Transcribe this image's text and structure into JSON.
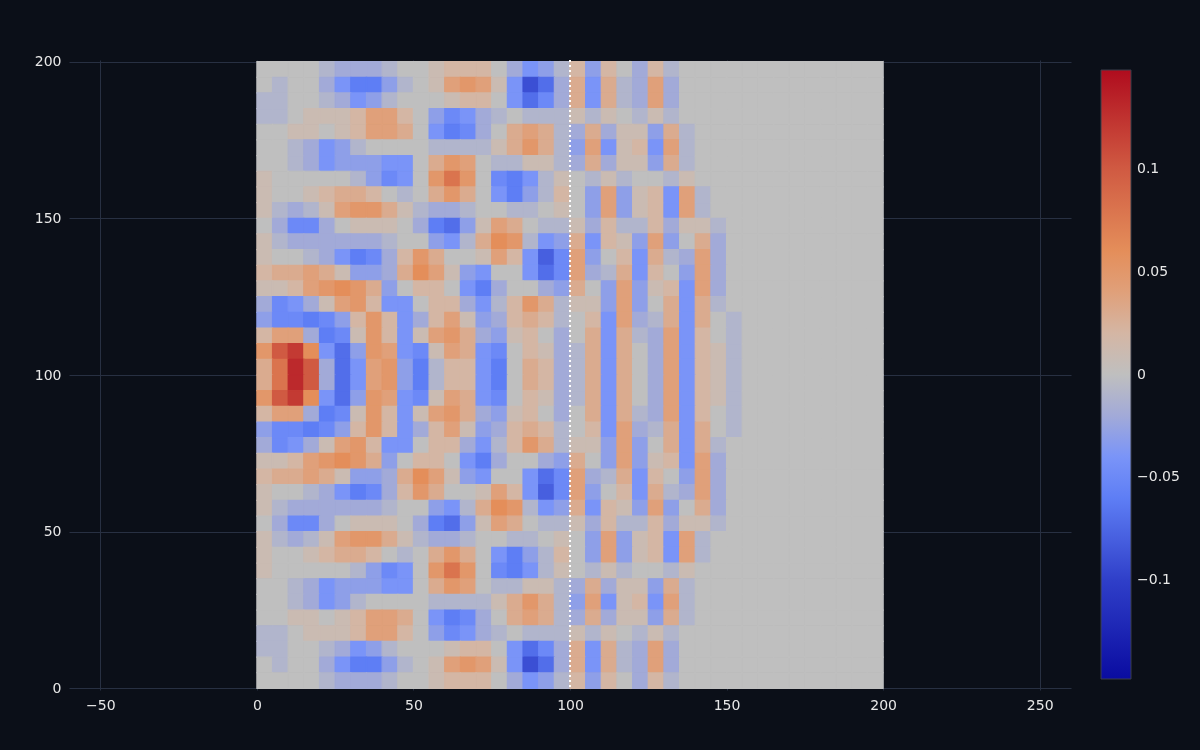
{
  "chart_data": {
    "type": "heatmap",
    "x": [
      2.5,
      7.5,
      12.5,
      17.5,
      22.5,
      27.5,
      32.5,
      37.5,
      42.5,
      47.5,
      52.5,
      57.5,
      62.5,
      67.5,
      72.5,
      77.5,
      82.5,
      87.5,
      92.5,
      97.5,
      102.5,
      107.5,
      112.5,
      117.5,
      122.5,
      127.5,
      132.5,
      137.5,
      142.5,
      147.5,
      152.5,
      157.5,
      162.5,
      167.5,
      172.5,
      177.5,
      182.5,
      187.5,
      192.5,
      197.5
    ],
    "y": [
      197.5,
      192.5,
      187.5,
      182.5,
      177.5,
      172.5,
      167.5,
      162.5,
      157.5,
      152.5,
      147.5,
      142.5,
      137.5,
      132.5,
      127.5,
      122.5,
      117.5,
      112.5,
      107.5,
      102.5,
      97.5,
      92.5,
      87.5,
      82.5,
      77.5,
      72.5,
      67.5,
      62.5,
      57.5,
      52.5,
      47.5,
      42.5,
      37.5,
      32.5,
      27.5,
      22.5,
      17.5,
      12.5,
      7.5,
      2.5
    ],
    "cells": [
      [
        0,
        0,
        0,
        0,
        -0.01,
        -0.02,
        -0.02,
        -0.02,
        -0.01,
        0,
        0,
        0.01,
        0.02,
        0.02,
        0.02,
        0,
        -0.02,
        -0.04,
        -0.03,
        -0.01,
        0.02,
        -0.03,
        0.02,
        0,
        -0.02,
        0.02,
        -0.01,
        0,
        0,
        0,
        0,
        0,
        0,
        0,
        0,
        0,
        0,
        0,
        0,
        0
      ],
      [
        0,
        -0.01,
        0,
        0,
        -0.02,
        -0.04,
        -0.06,
        -0.06,
        -0.03,
        -0.01,
        0,
        0.01,
        0.04,
        0.05,
        0.04,
        0.01,
        -0.04,
        -0.09,
        -0.07,
        -0.02,
        0.03,
        -0.04,
        0.03,
        -0.01,
        -0.02,
        0.04,
        -0.02,
        0,
        0,
        0,
        0,
        0,
        0,
        0,
        0,
        0,
        0,
        0,
        0,
        0
      ],
      [
        -0.01,
        -0.01,
        0,
        0,
        -0.01,
        -0.02,
        -0.04,
        -0.03,
        -0.01,
        0,
        0,
        0,
        0.01,
        0.02,
        0.02,
        0,
        -0.04,
        -0.07,
        -0.05,
        -0.02,
        0.03,
        -0.04,
        0.03,
        -0.01,
        -0.02,
        0.04,
        -0.02,
        0,
        0,
        0,
        0,
        0,
        0,
        0,
        0,
        0,
        0,
        0,
        0,
        0
      ],
      [
        -0.01,
        -0.01,
        0,
        0.01,
        0.01,
        0.01,
        0.02,
        0.04,
        0.04,
        0.02,
        0,
        -0.03,
        -0.05,
        -0.04,
        -0.02,
        -0.01,
        0,
        -0.01,
        -0.01,
        -0.01,
        0.01,
        -0.01,
        0.01,
        0,
        -0.01,
        0.01,
        -0.01,
        0,
        0,
        0,
        0,
        0,
        0,
        0,
        0,
        0,
        0,
        0,
        0,
        0
      ],
      [
        0,
        0,
        0.01,
        0.01,
        0,
        0.01,
        0.02,
        0.04,
        0.04,
        0.03,
        0,
        -0.04,
        -0.06,
        -0.05,
        -0.02,
        0,
        0.03,
        0.04,
        0.03,
        -0.01,
        -0.02,
        0.03,
        -0.02,
        0.01,
        0.01,
        -0.03,
        0.03,
        -0.01,
        0,
        0,
        0,
        0,
        0,
        0,
        0,
        0,
        0,
        0,
        0,
        0
      ],
      [
        0,
        0,
        -0.01,
        -0.02,
        -0.04,
        -0.03,
        -0.01,
        0,
        0,
        0,
        0,
        -0.01,
        -0.01,
        -0.01,
        -0.01,
        0.01,
        0.03,
        0.05,
        0.03,
        -0.01,
        -0.03,
        0.04,
        -0.04,
        0.01,
        0.02,
        -0.04,
        0.04,
        -0.01,
        0,
        0,
        0,
        0,
        0,
        0,
        0,
        0,
        0,
        0,
        0,
        0
      ],
      [
        0,
        0,
        -0.01,
        -0.02,
        -0.04,
        -0.03,
        -0.03,
        -0.03,
        -0.04,
        -0.04,
        0,
        0.03,
        0.05,
        0.04,
        0,
        -0.01,
        -0.01,
        0.01,
        0.01,
        -0.01,
        -0.02,
        0.03,
        -0.02,
        0.01,
        0.01,
        -0.03,
        0.03,
        -0.01,
        0,
        0,
        0,
        0,
        0,
        0,
        0,
        0,
        0,
        0,
        0,
        0
      ],
      [
        0.01,
        0,
        0,
        0,
        0,
        0,
        -0.01,
        -0.03,
        -0.05,
        -0.04,
        0,
        0.05,
        0.08,
        0.05,
        0,
        -0.05,
        -0.06,
        -0.04,
        -0.01,
        0.01,
        0,
        -0.01,
        0.01,
        -0.01,
        0,
        0,
        -0.01,
        0.01,
        0,
        0,
        0,
        0,
        0,
        0,
        0,
        0,
        0,
        0,
        0,
        0
      ],
      [
        0.01,
        0,
        0,
        0.01,
        0.02,
        0.03,
        0.03,
        0.02,
        0,
        -0.01,
        0,
        0.03,
        0.05,
        0.03,
        0,
        -0.04,
        -0.06,
        -0.03,
        -0.01,
        0.02,
        0,
        -0.03,
        0.04,
        -0.03,
        0.01,
        0.02,
        -0.04,
        0.04,
        -0.01,
        0,
        0,
        0,
        0,
        0,
        0,
        0,
        0,
        0,
        0,
        0
      ],
      [
        0.01,
        -0.01,
        -0.02,
        -0.01,
        0.01,
        0.04,
        0.05,
        0.05,
        0.03,
        0.01,
        -0.01,
        -0.02,
        -0.02,
        -0.01,
        0,
        0,
        -0.01,
        -0.01,
        0,
        0.01,
        0,
        -0.03,
        0.04,
        -0.03,
        0.01,
        0.02,
        -0.04,
        0.04,
        -0.01,
        0,
        0,
        0,
        0,
        0,
        0,
        0,
        0,
        0,
        0,
        0
      ],
      [
        0,
        -0.02,
        -0.05,
        -0.05,
        -0.02,
        0,
        0.01,
        0.01,
        0.01,
        0,
        -0.02,
        -0.06,
        -0.07,
        -0.03,
        0.01,
        0.04,
        0.03,
        0,
        -0.01,
        -0.01,
        0.01,
        -0.02,
        0.02,
        -0.01,
        -0.01,
        0.02,
        -0.02,
        0.01,
        0.01,
        -0.01,
        0,
        0,
        0,
        0,
        0,
        0,
        0,
        0,
        0,
        0
      ],
      [
        0.01,
        -0.01,
        -0.02,
        -0.02,
        -0.02,
        -0.02,
        -0.02,
        -0.02,
        -0.01,
        0,
        0,
        -0.03,
        -0.04,
        -0.01,
        0.03,
        0.06,
        0.05,
        -0.01,
        -0.04,
        -0.03,
        0.03,
        -0.04,
        0.02,
        0.01,
        -0.03,
        0.04,
        -0.03,
        0,
        0.03,
        -0.02,
        0,
        0,
        0,
        0,
        0,
        0,
        0,
        0,
        0,
        0
      ],
      [
        0.01,
        0,
        0,
        -0.01,
        -0.02,
        -0.04,
        -0.06,
        -0.05,
        -0.02,
        0.02,
        0.05,
        0.03,
        0,
        0,
        0.01,
        0.04,
        0.02,
        -0.04,
        -0.08,
        -0.05,
        0.04,
        -0.03,
        0,
        0.02,
        -0.04,
        0.03,
        -0.01,
        -0.02,
        0.04,
        -0.02,
        0,
        0,
        0,
        0,
        0,
        0,
        0,
        0,
        0,
        0
      ],
      [
        0.02,
        0.03,
        0.03,
        0.04,
        0.03,
        0.01,
        -0.03,
        -0.03,
        -0.02,
        0.03,
        0.06,
        0.04,
        0.01,
        -0.03,
        -0.04,
        0,
        0,
        -0.04,
        -0.07,
        -0.05,
        0.04,
        -0.02,
        -0.01,
        0.03,
        -0.04,
        0.02,
        0,
        -0.03,
        0.04,
        -0.02,
        0,
        0,
        0,
        0,
        0,
        0,
        0,
        0,
        0,
        0
      ],
      [
        0.01,
        0.01,
        0.02,
        0.04,
        0.05,
        0.06,
        0.05,
        0.03,
        -0.03,
        0,
        0.02,
        0.02,
        0,
        -0.04,
        -0.06,
        -0.02,
        0,
        0,
        -0.02,
        -0.03,
        0.03,
        0,
        -0.03,
        0.04,
        -0.03,
        0.01,
        0.02,
        -0.04,
        0.04,
        -0.02,
        0,
        0,
        0,
        0,
        0,
        0,
        0,
        0,
        0,
        0
      ],
      [
        -0.02,
        -0.05,
        -0.04,
        -0.02,
        0.01,
        0.04,
        0.05,
        0.02,
        -0.04,
        -0.04,
        0,
        0.02,
        0.02,
        -0.02,
        -0.04,
        -0.01,
        0.02,
        0.05,
        0.03,
        -0.01,
        0.01,
        0.01,
        -0.03,
        0.04,
        -0.03,
        0,
        0.03,
        -0.04,
        0.03,
        -0.01,
        0,
        0,
        0,
        0,
        0,
        0,
        0,
        0,
        0,
        0
      ],
      [
        -0.03,
        -0.05,
        -0.05,
        -0.06,
        -0.05,
        -0.03,
        0.02,
        0.05,
        0.02,
        -0.04,
        -0.02,
        0.02,
        0.04,
        0.01,
        -0.03,
        -0.02,
        0.02,
        0.03,
        0.02,
        -0.01,
        0,
        0.02,
        -0.04,
        0.04,
        -0.02,
        -0.01,
        0.03,
        -0.04,
        0.03,
        0,
        -0.01,
        0,
        0,
        0,
        0,
        0,
        0,
        0,
        0,
        0
      ],
      [
        0.02,
        0.04,
        0.04,
        -0.02,
        -0.06,
        -0.05,
        0.01,
        0.05,
        0.02,
        -0.04,
        0.01,
        0.04,
        0.05,
        0.03,
        -0.02,
        -0.03,
        0.01,
        0.02,
        0,
        -0.02,
        0,
        0.03,
        -0.04,
        0.03,
        -0.01,
        -0.02,
        0.04,
        -0.04,
        0.02,
        0,
        -0.01,
        0,
        0,
        0,
        0,
        0,
        0,
        0,
        0,
        0
      ],
      [
        0.05,
        0.1,
        0.12,
        0.06,
        -0.04,
        -0.07,
        -0.03,
        0.05,
        0.04,
        -0.04,
        -0.05,
        0.01,
        0.04,
        0.03,
        -0.04,
        -0.05,
        0,
        0.02,
        0.01,
        -0.02,
        -0.01,
        0.03,
        -0.04,
        0.03,
        0,
        -0.02,
        0.04,
        -0.04,
        0.02,
        0.01,
        -0.01,
        0,
        0,
        0,
        0,
        0,
        0,
        0,
        0,
        0
      ],
      [
        0.03,
        0.08,
        0.13,
        0.1,
        -0.02,
        -0.07,
        -0.04,
        0.04,
        0.05,
        -0.03,
        -0.06,
        -0.01,
        0.02,
        0.02,
        -0.04,
        -0.06,
        0,
        0.03,
        0.02,
        -0.02,
        -0.01,
        0.03,
        -0.04,
        0.03,
        0,
        -0.02,
        0.04,
        -0.04,
        0.02,
        0.01,
        -0.01,
        0,
        0,
        0,
        0,
        0,
        0,
        0,
        0,
        0
      ],
      [
        0.03,
        0.08,
        0.13,
        0.1,
        -0.02,
        -0.07,
        -0.04,
        0.04,
        0.05,
        -0.03,
        -0.06,
        -0.01,
        0.02,
        0.02,
        -0.04,
        -0.06,
        0,
        0.03,
        0.02,
        -0.02,
        -0.01,
        0.03,
        -0.04,
        0.03,
        0,
        -0.02,
        0.04,
        -0.04,
        0.02,
        0.01,
        -0.01,
        0,
        0,
        0,
        0,
        0,
        0,
        0,
        0,
        0
      ],
      [
        0.05,
        0.1,
        0.12,
        0.06,
        -0.04,
        -0.07,
        -0.03,
        0.05,
        0.04,
        -0.04,
        -0.05,
        0.01,
        0.04,
        0.03,
        -0.04,
        -0.05,
        0,
        0.02,
        0.01,
        -0.02,
        -0.01,
        0.03,
        -0.04,
        0.03,
        0,
        -0.02,
        0.04,
        -0.04,
        0.02,
        0.01,
        -0.01,
        0,
        0,
        0,
        0,
        0,
        0,
        0,
        0,
        0
      ],
      [
        0.02,
        0.04,
        0.04,
        -0.02,
        -0.06,
        -0.05,
        0.01,
        0.05,
        0.02,
        -0.04,
        0.01,
        0.04,
        0.05,
        0.03,
        -0.02,
        -0.03,
        0.01,
        0.02,
        0,
        -0.02,
        0,
        0.03,
        -0.04,
        0.03,
        -0.01,
        -0.02,
        0.04,
        -0.04,
        0.02,
        0,
        -0.01,
        0,
        0,
        0,
        0,
        0,
        0,
        0,
        0,
        0
      ],
      [
        -0.03,
        -0.05,
        -0.05,
        -0.06,
        -0.05,
        -0.03,
        0.02,
        0.05,
        0.02,
        -0.04,
        -0.02,
        0.02,
        0.04,
        0.01,
        -0.03,
        -0.02,
        0.02,
        0.03,
        0.02,
        -0.01,
        0,
        0.02,
        -0.04,
        0.04,
        -0.02,
        -0.01,
        0.03,
        -0.04,
        0.03,
        0,
        -0.01,
        0,
        0,
        0,
        0,
        0,
        0,
        0,
        0,
        0
      ],
      [
        -0.02,
        -0.05,
        -0.04,
        -0.02,
        0.01,
        0.04,
        0.05,
        0.02,
        -0.04,
        -0.04,
        0,
        0.02,
        0.02,
        -0.02,
        -0.04,
        -0.01,
        0.02,
        0.05,
        0.03,
        -0.01,
        0.01,
        0.01,
        -0.03,
        0.04,
        -0.03,
        0,
        0.03,
        -0.04,
        0.03,
        -0.01,
        0,
        0,
        0,
        0,
        0,
        0,
        0,
        0,
        0,
        0
      ],
      [
        0.01,
        0.01,
        0.02,
        0.04,
        0.05,
        0.06,
        0.05,
        0.03,
        -0.03,
        0,
        0.02,
        0.02,
        0,
        -0.04,
        -0.06,
        -0.02,
        0,
        0,
        -0.02,
        -0.03,
        0.03,
        0,
        -0.03,
        0.04,
        -0.03,
        0.01,
        0.02,
        -0.04,
        0.04,
        -0.02,
        0,
        0,
        0,
        0,
        0,
        0,
        0,
        0,
        0,
        0
      ],
      [
        0.02,
        0.03,
        0.03,
        0.04,
        0.03,
        0.01,
        -0.03,
        -0.03,
        -0.02,
        0.03,
        0.06,
        0.04,
        0.01,
        -0.03,
        -0.04,
        0,
        0,
        -0.04,
        -0.07,
        -0.05,
        0.04,
        -0.02,
        -0.01,
        0.03,
        -0.04,
        0.02,
        0,
        -0.03,
        0.04,
        -0.02,
        0,
        0,
        0,
        0,
        0,
        0,
        0,
        0,
        0,
        0
      ],
      [
        0.01,
        0,
        0,
        -0.01,
        -0.02,
        -0.04,
        -0.06,
        -0.05,
        -0.02,
        0.02,
        0.05,
        0.03,
        0,
        0,
        0.01,
        0.04,
        0.02,
        -0.04,
        -0.08,
        -0.05,
        0.04,
        -0.03,
        0,
        0.02,
        -0.04,
        0.03,
        -0.01,
        -0.02,
        0.04,
        -0.02,
        0,
        0,
        0,
        0,
        0,
        0,
        0,
        0,
        0,
        0
      ],
      [
        0.01,
        -0.01,
        -0.02,
        -0.02,
        -0.02,
        -0.02,
        -0.02,
        -0.02,
        -0.01,
        0,
        0,
        -0.03,
        -0.04,
        -0.01,
        0.03,
        0.06,
        0.05,
        -0.01,
        -0.04,
        -0.03,
        0.03,
        -0.04,
        0.02,
        0.01,
        -0.03,
        0.04,
        -0.03,
        0,
        0.03,
        -0.02,
        0,
        0,
        0,
        0,
        0,
        0,
        0,
        0,
        0,
        0
      ],
      [
        0,
        -0.02,
        -0.05,
        -0.05,
        -0.02,
        0,
        0.01,
        0.01,
        0.01,
        0,
        -0.02,
        -0.06,
        -0.07,
        -0.03,
        0.01,
        0.04,
        0.03,
        0,
        -0.01,
        -0.01,
        0.01,
        -0.02,
        0.02,
        -0.01,
        -0.01,
        0.02,
        -0.02,
        0.01,
        0.01,
        -0.01,
        0,
        0,
        0,
        0,
        0,
        0,
        0,
        0,
        0,
        0
      ],
      [
        0.01,
        -0.01,
        -0.02,
        -0.01,
        0.01,
        0.04,
        0.05,
        0.05,
        0.03,
        0.01,
        -0.01,
        -0.02,
        -0.02,
        -0.01,
        0,
        0,
        -0.01,
        -0.01,
        0,
        0.01,
        0,
        -0.03,
        0.04,
        -0.03,
        0.01,
        0.02,
        -0.04,
        0.04,
        -0.01,
        0,
        0,
        0,
        0,
        0,
        0,
        0,
        0,
        0,
        0,
        0
      ],
      [
        0.01,
        0,
        0,
        0.01,
        0.02,
        0.03,
        0.03,
        0.02,
        0,
        -0.01,
        0,
        0.03,
        0.05,
        0.03,
        0,
        -0.04,
        -0.06,
        -0.03,
        -0.01,
        0.02,
        0,
        -0.03,
        0.04,
        -0.03,
        0.01,
        0.02,
        -0.04,
        0.04,
        -0.01,
        0,
        0,
        0,
        0,
        0,
        0,
        0,
        0,
        0,
        0,
        0
      ],
      [
        0.01,
        0,
        0,
        0,
        0,
        0,
        -0.01,
        -0.03,
        -0.05,
        -0.04,
        0,
        0.05,
        0.08,
        0.05,
        0,
        -0.05,
        -0.06,
        -0.04,
        -0.01,
        0.01,
        0,
        -0.01,
        0.01,
        -0.01,
        0,
        0,
        -0.01,
        0.01,
        0,
        0,
        0,
        0,
        0,
        0,
        0,
        0,
        0,
        0,
        0,
        0
      ],
      [
        0,
        0,
        -0.01,
        -0.02,
        -0.04,
        -0.03,
        -0.03,
        -0.03,
        -0.04,
        -0.04,
        0,
        0.03,
        0.05,
        0.04,
        0,
        -0.01,
        -0.01,
        0.01,
        0.01,
        -0.01,
        -0.02,
        0.03,
        -0.02,
        0.01,
        0.01,
        -0.03,
        0.03,
        -0.01,
        0,
        0,
        0,
        0,
        0,
        0,
        0,
        0,
        0,
        0,
        0,
        0
      ],
      [
        0,
        0,
        -0.01,
        -0.02,
        -0.04,
        -0.03,
        -0.01,
        0,
        0,
        0,
        0,
        -0.01,
        -0.01,
        -0.01,
        -0.01,
        0.01,
        0.03,
        0.05,
        0.03,
        -0.01,
        -0.03,
        0.04,
        -0.04,
        0.01,
        0.02,
        -0.04,
        0.04,
        -0.01,
        0,
        0,
        0,
        0,
        0,
        0,
        0,
        0,
        0,
        0,
        0,
        0
      ],
      [
        0,
        0,
        0.01,
        0.01,
        0,
        0.01,
        0.02,
        0.04,
        0.04,
        0.03,
        0,
        -0.04,
        -0.06,
        -0.05,
        -0.02,
        0,
        0.03,
        0.04,
        0.03,
        -0.01,
        -0.02,
        0.03,
        -0.02,
        0.01,
        0.01,
        -0.03,
        0.03,
        -0.01,
        0,
        0,
        0,
        0,
        0,
        0,
        0,
        0,
        0,
        0,
        0,
        0
      ],
      [
        -0.01,
        -0.01,
        0,
        0.01,
        0.01,
        0.01,
        0.02,
        0.04,
        0.04,
        0.02,
        0,
        -0.03,
        -0.05,
        -0.04,
        -0.02,
        -0.01,
        0,
        -0.01,
        -0.01,
        -0.01,
        0.01,
        -0.01,
        0.01,
        0,
        -0.01,
        0.01,
        -0.01,
        0,
        0,
        0,
        0,
        0,
        0,
        0,
        0,
        0,
        0,
        0,
        0,
        0
      ],
      [
        -0.01,
        -0.01,
        0,
        0,
        -0.01,
        -0.02,
        -0.04,
        -0.03,
        -0.01,
        0,
        0,
        0,
        0.01,
        0.02,
        0.02,
        0,
        -0.04,
        -0.07,
        -0.05,
        -0.02,
        0.03,
        -0.04,
        0.03,
        -0.01,
        -0.02,
        0.04,
        -0.02,
        0,
        0,
        0,
        0,
        0,
        0,
        0,
        0,
        0,
        0,
        0,
        0,
        0
      ],
      [
        0,
        -0.01,
        0,
        0,
        -0.02,
        -0.04,
        -0.06,
        -0.06,
        -0.03,
        -0.01,
        0,
        0.01,
        0.04,
        0.05,
        0.04,
        0.01,
        -0.04,
        -0.09,
        -0.07,
        -0.02,
        0.03,
        -0.04,
        0.03,
        -0.01,
        -0.02,
        0.04,
        -0.02,
        0,
        0,
        0,
        0,
        0,
        0,
        0,
        0,
        0,
        0,
        0,
        0,
        0
      ],
      [
        0,
        0,
        0,
        0,
        -0.01,
        -0.02,
        -0.02,
        -0.02,
        -0.01,
        0,
        0,
        0.01,
        0.02,
        0.02,
        0.02,
        0,
        -0.02,
        -0.04,
        -0.03,
        -0.01,
        0.02,
        -0.03,
        0.02,
        0,
        -0.02,
        0.02,
        -0.01,
        0,
        0,
        0,
        0,
        0,
        0,
        0,
        0,
        0,
        0,
        0,
        0,
        0
      ]
    ],
    "clim": [
      -0.148,
      0.148
    ],
    "cticks": [
      -0.1,
      -0.05,
      0,
      0.05,
      0.1
    ],
    "xlim": [
      -60,
      260
    ],
    "ylim": [
      -0.5,
      200.5
    ],
    "xticks": [
      -50,
      0,
      50,
      100,
      150,
      200,
      250
    ],
    "yticks": [
      0,
      50,
      100,
      150,
      200
    ],
    "grid": true,
    "ref_lines": [
      {
        "axis": "x",
        "value": 100,
        "color": "#ffffff",
        "line_style": "dotted"
      }
    ]
  }
}
